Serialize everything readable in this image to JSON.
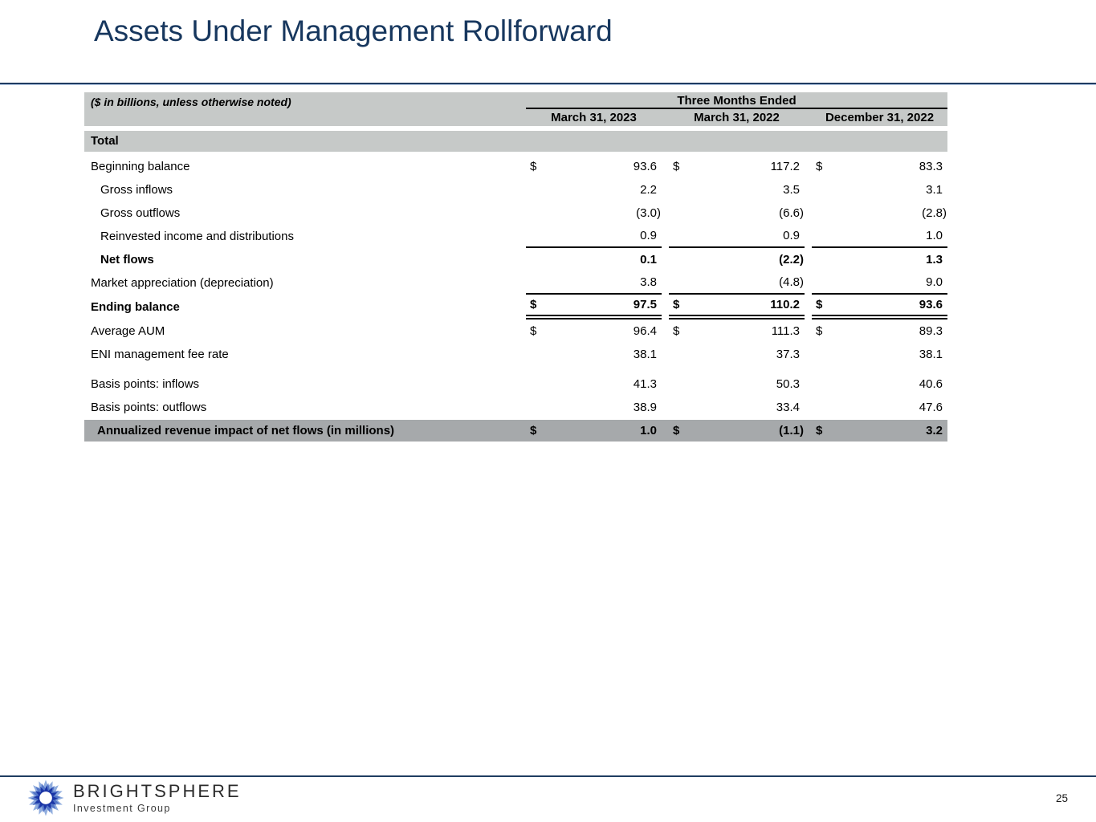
{
  "slide": {
    "title": "Assets Under Management Rollforward",
    "page_number": "25"
  },
  "table": {
    "note": "($ in billions, unless otherwise noted)",
    "period_header": "Three Months Ended",
    "columns": [
      "March 31, 2023",
      "March 31, 2022",
      "December 31, 2022"
    ],
    "section_header": "Total",
    "rows": [
      {
        "label": "Beginning balance",
        "indent": false,
        "bold": false,
        "dollar": true,
        "values": [
          "93.6",
          "117.2",
          "83.3"
        ]
      },
      {
        "label": "Gross inflows",
        "indent": true,
        "bold": false,
        "dollar": false,
        "values": [
          "2.2",
          "3.5",
          "3.1"
        ]
      },
      {
        "label": "Gross outflows",
        "indent": true,
        "bold": false,
        "dollar": false,
        "values": [
          "(3.0)",
          "(6.6)",
          "(2.8)"
        ]
      },
      {
        "label": "Reinvested income and distributions",
        "indent": true,
        "bold": false,
        "dollar": false,
        "values": [
          "0.9",
          "0.9",
          "1.0"
        ],
        "underline": "single"
      },
      {
        "label": "Net flows",
        "indent": true,
        "bold": true,
        "dollar": false,
        "values": [
          "0.1",
          "(2.2)",
          "1.3"
        ]
      },
      {
        "label": "Market appreciation (depreciation)",
        "indent": false,
        "bold": false,
        "dollar": false,
        "values": [
          "3.8",
          "(4.8)",
          "9.0"
        ],
        "underline": "single"
      },
      {
        "label": "Ending balance",
        "indent": false,
        "bold": true,
        "dollar": true,
        "values": [
          "97.5",
          "110.2",
          "93.6"
        ],
        "underline": "double"
      },
      {
        "label": "Average AUM",
        "indent": false,
        "bold": false,
        "dollar": true,
        "values": [
          "96.4",
          "111.3",
          "89.3"
        ]
      },
      {
        "label": "ENI management fee rate",
        "indent": false,
        "bold": false,
        "dollar": false,
        "values": [
          "38.1",
          "37.3",
          "38.1"
        ]
      },
      {
        "label": "Basis points: inflows",
        "indent": false,
        "bold": false,
        "dollar": false,
        "values": [
          "41.3",
          "50.3",
          "40.6"
        ],
        "gap_before": true
      },
      {
        "label": "Basis points: outflows",
        "indent": false,
        "bold": false,
        "dollar": false,
        "values": [
          "38.9",
          "33.4",
          "47.6"
        ]
      },
      {
        "label": "Annualized revenue impact of net flows (in millions)",
        "indent": false,
        "bold": true,
        "dollar": true,
        "values": [
          "1.0",
          "(1.1)",
          "3.2"
        ],
        "highlight": true
      }
    ]
  },
  "footer": {
    "brand": "BRIGHTSPHERE",
    "brand_subtitle": "Investment Group",
    "logo_icon": "starburst-sphere-icon"
  },
  "colors": {
    "accent_navy": "#17375e",
    "rule_navy": "#1f3c61",
    "header_gray": "#c6c9c8",
    "highlight_gray": "#a6a9ab",
    "logo_outer_blue": "#8aa9dc",
    "logo_inner_blue": "#1a35a6"
  }
}
